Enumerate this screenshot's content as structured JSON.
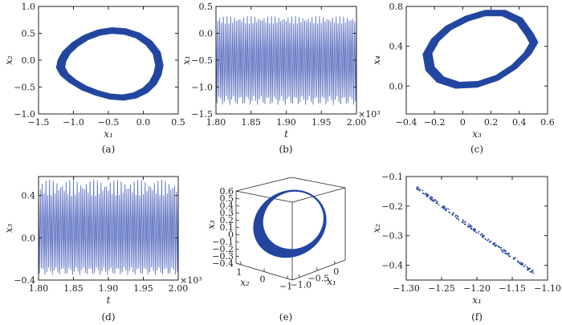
{
  "figure": {
    "panels": [
      {
        "id": "a",
        "caption": "(a)",
        "kind": "2d",
        "xlabel": "x₁",
        "ylabel": "x₂",
        "xlim": [
          -1.5,
          0.5
        ],
        "ylim": [
          -1.0,
          1.0
        ],
        "xticks": [
          {
            "v": -1.5,
            "label": "−1.5"
          },
          {
            "v": -1.0,
            "label": "−1.0"
          },
          {
            "v": -0.5,
            "label": "−0.5"
          },
          {
            "v": 0.0,
            "label": "0.0"
          },
          {
            "v": 0.5,
            "label": "0.5"
          }
        ],
        "yticks": [
          {
            "v": -1.0,
            "label": "−1.0"
          },
          {
            "v": -0.5,
            "label": "−0.5"
          },
          {
            "v": 0.0,
            "label": "0.0"
          },
          {
            "v": 0.5,
            "label": "0.5"
          },
          {
            "v": 1.0,
            "label": "1.0"
          }
        ]
      },
      {
        "id": "b",
        "caption": "(b)",
        "kind": "2d",
        "xlabel": "t",
        "ylabel": "x₁",
        "xmult": "×10³",
        "xlim": [
          1.8,
          2.0
        ],
        "ylim": [
          -1.5,
          0.5
        ],
        "xticks": [
          {
            "v": 1.8,
            "label": "1.80"
          },
          {
            "v": 1.85,
            "label": "1.85"
          },
          {
            "v": 1.9,
            "label": "1.90"
          },
          {
            "v": 1.95,
            "label": "1.95"
          },
          {
            "v": 2.0,
            "label": "2.00"
          }
        ],
        "yticks": [
          {
            "v": -1.5,
            "label": "−1.5"
          },
          {
            "v": -1.0,
            "label": "−1.0"
          },
          {
            "v": -0.5,
            "label": "−0.5"
          },
          {
            "v": 0.0,
            "label": "0.0"
          },
          {
            "v": 0.5,
            "label": "0.5"
          }
        ]
      },
      {
        "id": "c",
        "caption": "(c)",
        "kind": "2d",
        "xlabel": "x₃",
        "ylabel": "x₄",
        "xlim": [
          -0.4,
          0.6
        ],
        "ylim": [
          -0.28,
          0.8
        ],
        "xticks": [
          {
            "v": -0.4,
            "label": "−0.4"
          },
          {
            "v": -0.2,
            "label": "−0.2"
          },
          {
            "v": 0.0,
            "label": "0"
          },
          {
            "v": 0.2,
            "label": "0.2"
          },
          {
            "v": 0.4,
            "label": "0.4"
          },
          {
            "v": 0.6,
            "label": "0.6"
          }
        ],
        "yticks": [
          {
            "v": 0.0,
            "label": "0.0"
          },
          {
            "v": 0.4,
            "label": "0.4"
          },
          {
            "v": 0.8,
            "label": "0.8"
          }
        ]
      },
      {
        "id": "d",
        "caption": "(d)",
        "kind": "2d",
        "xlabel": "t",
        "ylabel": "x₃",
        "xmult": "×10³",
        "xlim": [
          1.8,
          2.0
        ],
        "ylim": [
          -0.4,
          0.58
        ],
        "xticks": [
          {
            "v": 1.8,
            "label": "1.80"
          },
          {
            "v": 1.85,
            "label": "1.85"
          },
          {
            "v": 1.9,
            "label": "1.90"
          },
          {
            "v": 1.95,
            "label": "1.95"
          },
          {
            "v": 2.0,
            "label": "2.00"
          }
        ],
        "yticks": [
          {
            "v": -0.4,
            "label": "−0.4"
          },
          {
            "v": 0.0,
            "label": "0.0"
          },
          {
            "v": 0.4,
            "label": "0.4"
          }
        ]
      },
      {
        "id": "e",
        "caption": "(e)",
        "kind": "3d",
        "xlabel": "x₁",
        "ylabel": "x₂",
        "zlabel": "x₃",
        "zticks": [
          {
            "v": -0.4,
            "label": "−0.4"
          },
          {
            "v": -0.3,
            "label": "−0.3"
          },
          {
            "v": -0.2,
            "label": "−0.2"
          },
          {
            "v": -0.1,
            "label": "−0.1"
          },
          {
            "v": 0.0,
            "label": "0"
          },
          {
            "v": 0.1,
            "label": "0.1"
          },
          {
            "v": 0.2,
            "label": "0.2"
          },
          {
            "v": 0.3,
            "label": "0.3"
          },
          {
            "v": 0.4,
            "label": "0.4"
          },
          {
            "v": 0.5,
            "label": "0.5"
          },
          {
            "v": 0.6,
            "label": "0.6"
          }
        ],
        "xticks": [
          {
            "v": -1.0,
            "label": "−1.0"
          },
          {
            "v": -0.5,
            "label": "−0.5"
          },
          {
            "v": 0.0,
            "label": "0"
          }
        ],
        "yticks": [
          {
            "v": -1.0,
            "label": "−1"
          },
          {
            "v": 0.0,
            "label": "0"
          },
          {
            "v": 1.0,
            "label": "1"
          }
        ]
      },
      {
        "id": "f",
        "caption": "(f)",
        "kind": "2d",
        "xlabel": "x₁",
        "ylabel": "x₂",
        "xlim": [
          -1.3,
          -1.1
        ],
        "ylim": [
          -0.45,
          -0.1
        ],
        "xticks": [
          {
            "v": -1.3,
            "label": "−1.30"
          },
          {
            "v": -1.25,
            "label": "−1.25"
          },
          {
            "v": -1.2,
            "label": "−1.20"
          },
          {
            "v": -1.15,
            "label": "−1.15"
          },
          {
            "v": -1.1,
            "label": "−1.10"
          }
        ],
        "yticks": [
          {
            "v": -0.4,
            "label": "−0.4"
          },
          {
            "v": -0.3,
            "label": "−0.3"
          },
          {
            "v": -0.2,
            "label": "−0.2"
          },
          {
            "v": -0.1,
            "label": "−0.1"
          }
        ]
      }
    ]
  },
  "chart_data": [
    {
      "type": "line",
      "panel": "a",
      "xlabel": "x₁",
      "ylabel": "x₂",
      "xlim": [
        -1.5,
        0.5
      ],
      "ylim": [
        -1.0,
        1.0
      ],
      "grid": false,
      "series": [
        {
          "x": [
            0.28,
            0.24,
            0.12,
            -0.05,
            -0.25,
            -0.45,
            -0.65,
            -0.85,
            -1.02,
            -1.15,
            -1.22,
            -1.24,
            -1.18,
            -1.05,
            -0.88,
            -0.68,
            -0.48,
            -0.28,
            -0.1,
            0.06,
            0.18,
            0.25,
            0.28
          ],
          "y": [
            -0.1,
            0.15,
            0.35,
            0.5,
            0.58,
            0.6,
            0.56,
            0.46,
            0.32,
            0.16,
            0.0,
            -0.14,
            -0.28,
            -0.42,
            -0.55,
            -0.65,
            -0.72,
            -0.74,
            -0.7,
            -0.6,
            -0.45,
            -0.28,
            -0.1
          ]
        }
      ],
      "band": "thick"
    },
    {
      "type": "line",
      "panel": "b",
      "xlabel": "t",
      "ylabel": "x₁",
      "xmult": "×10³",
      "xlim": [
        1.8,
        2.0
      ],
      "ylim": [
        -1.5,
        0.5
      ],
      "grid": false,
      "series": [
        {
          "x_range": [
            1.8,
            2.0
          ],
          "peak": [
            0.18,
            0.32
          ],
          "trough": [
            -1.33,
            -1.17
          ],
          "cycles": 76
        }
      ]
    },
    {
      "type": "line",
      "panel": "c",
      "xlabel": "x₃",
      "ylabel": "x₄",
      "xlim": [
        -0.4,
        0.6
      ],
      "ylim": [
        -0.28,
        0.8
      ],
      "grid": false,
      "series": [
        {
          "x": [
            0.5,
            0.42,
            0.3,
            0.16,
            0.02,
            -0.12,
            -0.22,
            -0.28,
            -0.26,
            -0.18,
            -0.05,
            0.1,
            0.25,
            0.38,
            0.48,
            0.53,
            0.5
          ],
          "y": [
            0.52,
            0.68,
            0.76,
            0.76,
            0.7,
            0.6,
            0.47,
            0.32,
            0.16,
            0.04,
            -0.02,
            -0.01,
            0.06,
            0.18,
            0.32,
            0.44,
            0.52
          ]
        }
      ],
      "band": "thick"
    },
    {
      "type": "line",
      "panel": "d",
      "xlabel": "t",
      "ylabel": "x₃",
      "xmult": "×10³",
      "xlim": [
        1.8,
        2.0
      ],
      "ylim": [
        -0.4,
        0.58
      ],
      "grid": false,
      "series": [
        {
          "x_range": [
            1.8,
            2.0
          ],
          "peak": [
            0.4,
            0.55
          ],
          "trough": [
            -0.35,
            -0.28
          ],
          "cycles": 76
        }
      ]
    },
    {
      "type": "line",
      "panel": "e",
      "xlabel": "x₁",
      "ylabel": "x₂",
      "zlabel": "x₃",
      "view": "3d",
      "grid": false,
      "series": [
        {
          "x_range": [
            -1.2,
            0.3
          ],
          "y_range": [
            -0.9,
            0.6
          ],
          "z_range": [
            -0.35,
            0.6
          ]
        }
      ],
      "band": "thick"
    },
    {
      "type": "scatter",
      "panel": "f",
      "xlabel": "x₁",
      "ylabel": "x₂",
      "xlim": [
        -1.3,
        -1.1
      ],
      "ylim": [
        -0.45,
        -0.1
      ],
      "grid": false,
      "series": [
        {
          "x": [
            -1.285,
            -1.12
          ],
          "y": [
            -0.138,
            -0.425
          ],
          "count": 900,
          "spread": 0.004
        }
      ]
    }
  ],
  "colors": {
    "line": "#2347a0",
    "line_light": "#5b6fc0",
    "axis": "#222222"
  }
}
